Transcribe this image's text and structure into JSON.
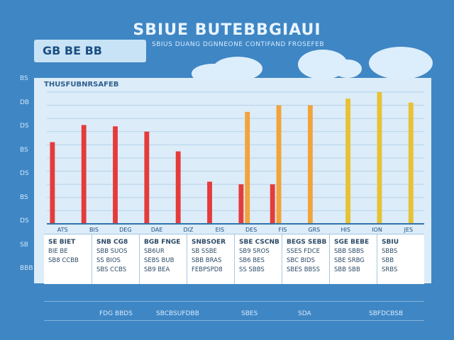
{
  "title": "SBIUE BUTEBBGIAUI",
  "label_box": "GB BE BB",
  "subtitle": "SBIUS DUANG DGNNEONE CONTIFAND FROSEFEB",
  "panel_header": "THUSFUBNRSAFEB",
  "y_ticks": [
    "BS",
    "DB",
    "DS",
    "BS",
    "DS",
    "BS",
    "DS",
    "SB",
    "BBB"
  ],
  "chart_data": {
    "type": "bar",
    "title": "SBIUE BUTEBBGIAUI",
    "ylim": [
      0,
      100
    ],
    "grid": true,
    "categories": [
      "ATS",
      "BIS",
      "DEG",
      "DAE",
      "DIZ",
      "EIS",
      "DES",
      "FIS",
      "GRS",
      "HIS",
      "ION",
      "JES"
    ],
    "series": [
      {
        "color": "#e53b3b",
        "values": [
          62,
          75,
          74,
          70,
          55,
          32,
          30,
          30,
          0,
          0,
          0,
          0
        ]
      },
      {
        "color": "#f2a33a",
        "values": [
          0,
          0,
          0,
          0,
          0,
          0,
          85,
          90,
          90,
          0,
          0,
          0
        ]
      },
      {
        "color": "#e7c234",
        "values": [
          0,
          0,
          0,
          0,
          0,
          0,
          0,
          0,
          0,
          95,
          100,
          92
        ]
      },
      {
        "color": "#7cc15a",
        "values": [
          0,
          0,
          0,
          0,
          0,
          0,
          0,
          0,
          0,
          0,
          0,
          0
        ]
      }
    ]
  },
  "table": {
    "columns": [
      {
        "header": "SE BIET",
        "rows": [
          "BIE BE",
          "SB8 CCBB"
        ]
      },
      {
        "header": "SNB CG8",
        "rows": [
          "SBB SUOS",
          "SS BIOS",
          "SBS CCBS"
        ]
      },
      {
        "header": "BGB FNGE",
        "rows": [
          "SB6UR",
          "SEBS BUB",
          "SB9 BEA"
        ]
      },
      {
        "header": "SNBSOER",
        "rows": [
          "SB SSBE",
          "SBB BRAS",
          "FEBPSPD8"
        ]
      },
      {
        "header": "SBE CSCNB",
        "rows": [
          "SB9 SROS",
          "SB6 BES",
          "SS SBBS"
        ]
      },
      {
        "header": "BEGS SEBB",
        "rows": [
          "SSES FDCE",
          "SBC BIDS",
          "SBES BBSS"
        ]
      },
      {
        "header": "SGE BEBE",
        "rows": [
          "SBB SBBS",
          "SBE SRBG",
          "SBB SBB"
        ]
      },
      {
        "header": "SBIU",
        "rows": [
          "SBBS",
          "SBB",
          "SRBS"
        ]
      }
    ]
  },
  "footer": {
    "left": "FDG BBDS",
    "mid": "SBCBSUFDBB",
    "mid2": "SBES",
    "mid3": "SDA",
    "right": "SBFDCBSB"
  }
}
